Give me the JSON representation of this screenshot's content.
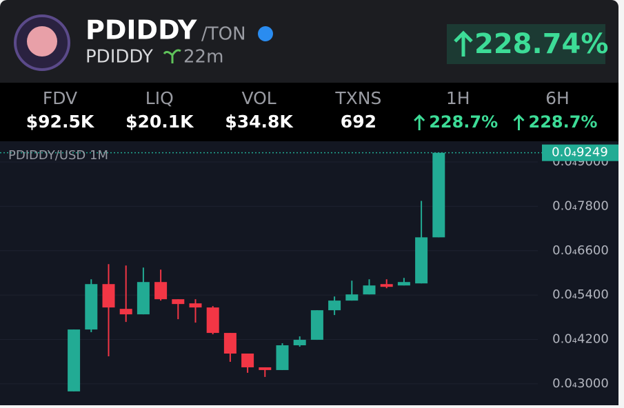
{
  "header": {
    "title": "PDIDDY",
    "chain": "/TON",
    "symbol": "PDIDDY",
    "age": "22m",
    "change": "228.74%"
  },
  "stats": [
    {
      "label": "FDV",
      "value": "$92.5K"
    },
    {
      "label": "LIQ",
      "value": "$20.1K"
    },
    {
      "label": "VOL",
      "value": "$34.8K"
    },
    {
      "label": "TXNS",
      "value": "692"
    },
    {
      "label": "1H",
      "value": "228.7%"
    },
    {
      "label": "6H",
      "value": "228.7%"
    }
  ],
  "chart_data": {
    "type": "candlestick",
    "title": "PDIDDY/USD 1M",
    "categories": [
      null,
      null,
      null,
      null,
      null,
      null,
      null,
      null,
      null,
      null,
      null,
      null,
      null,
      null,
      null,
      null,
      null,
      null,
      null,
      null,
      null,
      null
    ],
    "open": [
      2.795e-05,
      4.469e-05,
      5.697e-05,
      5.027e-05,
      4.879e-05,
      5.753e-05,
      5.288e-05,
      5.176e-05,
      5.065e-05,
      4.376e-05,
      3.818e-05,
      3.446e-05,
      3.372e-05,
      4.042e-05,
      4.19e-05,
      4.99e-05,
      5.251e-05,
      5.418e-05,
      5.697e-05,
      5.66e-05,
      5.716e-05,
      6.962e-05
    ],
    "high": [
      4.469e-05,
      5.827e-05,
      6.236e-05,
      6.199e-05,
      6.143e-05,
      6.088e-05,
      5.288e-05,
      5.288e-05,
      5.102e-05,
      4.376e-05,
      3.818e-05,
      3.446e-05,
      4.097e-05,
      4.283e-05,
      4.99e-05,
      5.362e-05,
      5.79e-05,
      5.827e-05,
      5.827e-05,
      5.864e-05,
      7.948e-05,
      9.249e-05
    ],
    "low": [
      2.795e-05,
      4.395e-05,
      3.744e-05,
      4.674e-05,
      4.879e-05,
      5.251e-05,
      4.748e-05,
      4.655e-05,
      4.339e-05,
      3.595e-05,
      3.298e-05,
      3.186e-05,
      3.372e-05,
      4.004e-05,
      4.19e-05,
      4.86e-05,
      5.251e-05,
      5.418e-05,
      5.585e-05,
      5.66e-05,
      5.716e-05,
      6.962e-05
    ],
    "close": [
      4.469e-05,
      5.697e-05,
      5.065e-05,
      4.879e-05,
      5.753e-05,
      5.288e-05,
      5.158e-05,
      5.065e-05,
      4.376e-05,
      3.818e-05,
      3.446e-05,
      3.372e-05,
      4.042e-05,
      4.19e-05,
      4.99e-05,
      5.251e-05,
      5.418e-05,
      5.66e-05,
      5.623e-05,
      5.753e-05,
      6.962e-05,
      9.249e-05
    ],
    "up_color": "#22ab94",
    "down_color": "#f23645",
    "last_price": {
      "value": 9.249e-05,
      "label": "0.0₄9249"
    },
    "ylim": [
      2.42e-05,
      9.56e-05
    ],
    "yticks": [
      {
        "value": 3e-05,
        "label": "0.0₄3000"
      },
      {
        "value": 4.2e-05,
        "label": "0.0₄4200"
      },
      {
        "value": 5.4e-05,
        "label": "0.0₄5400"
      },
      {
        "value": 6.6e-05,
        "label": "0.0₄6600"
      },
      {
        "value": 7.8e-05,
        "label": "0.0₄7800"
      },
      {
        "value": 9e-05,
        "label": "0.0₄9000"
      }
    ],
    "grid": true
  }
}
